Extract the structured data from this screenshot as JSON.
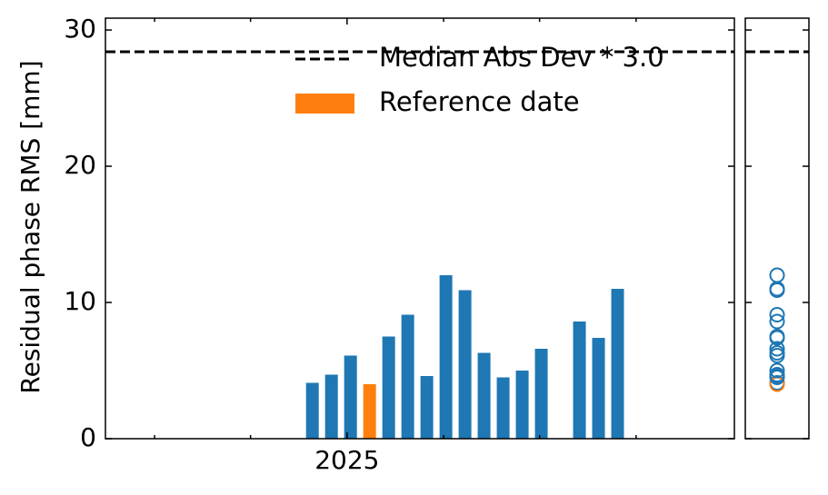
{
  "chart_data": {
    "type": "bar",
    "y_label": "Residual phase RMS [mm]",
    "x": [
      2024.94,
      2024.973,
      2025.006,
      2025.039,
      2025.072,
      2025.105,
      2025.138,
      2025.171,
      2025.204,
      2025.237,
      2025.27,
      2025.303,
      2025.336,
      2025.402,
      2025.435,
      2025.468
    ],
    "values": [
      4.1,
      4.7,
      6.1,
      4.0,
      7.5,
      9.1,
      4.6,
      12.0,
      10.9,
      6.3,
      4.5,
      5.0,
      6.6,
      8.6,
      7.4,
      11.0
    ],
    "color": "#1f77b4",
    "reference": {
      "name": "Reference date",
      "index": 3,
      "color": "#ff7f0e"
    },
    "threshold": {
      "name": "Median Abs Dev * 3.0",
      "value": 28.4,
      "color": "#000000"
    },
    "xlim": [
      2024.582,
      2025.67
    ],
    "xticks": [
      2025
    ],
    "xminor_ticks": [
      2024.667,
      2024.833,
      2025.167,
      2025.333,
      2025.5
    ],
    "ylim": [
      0,
      30.87
    ],
    "yticks": [
      0,
      10,
      20,
      30
    ]
  }
}
